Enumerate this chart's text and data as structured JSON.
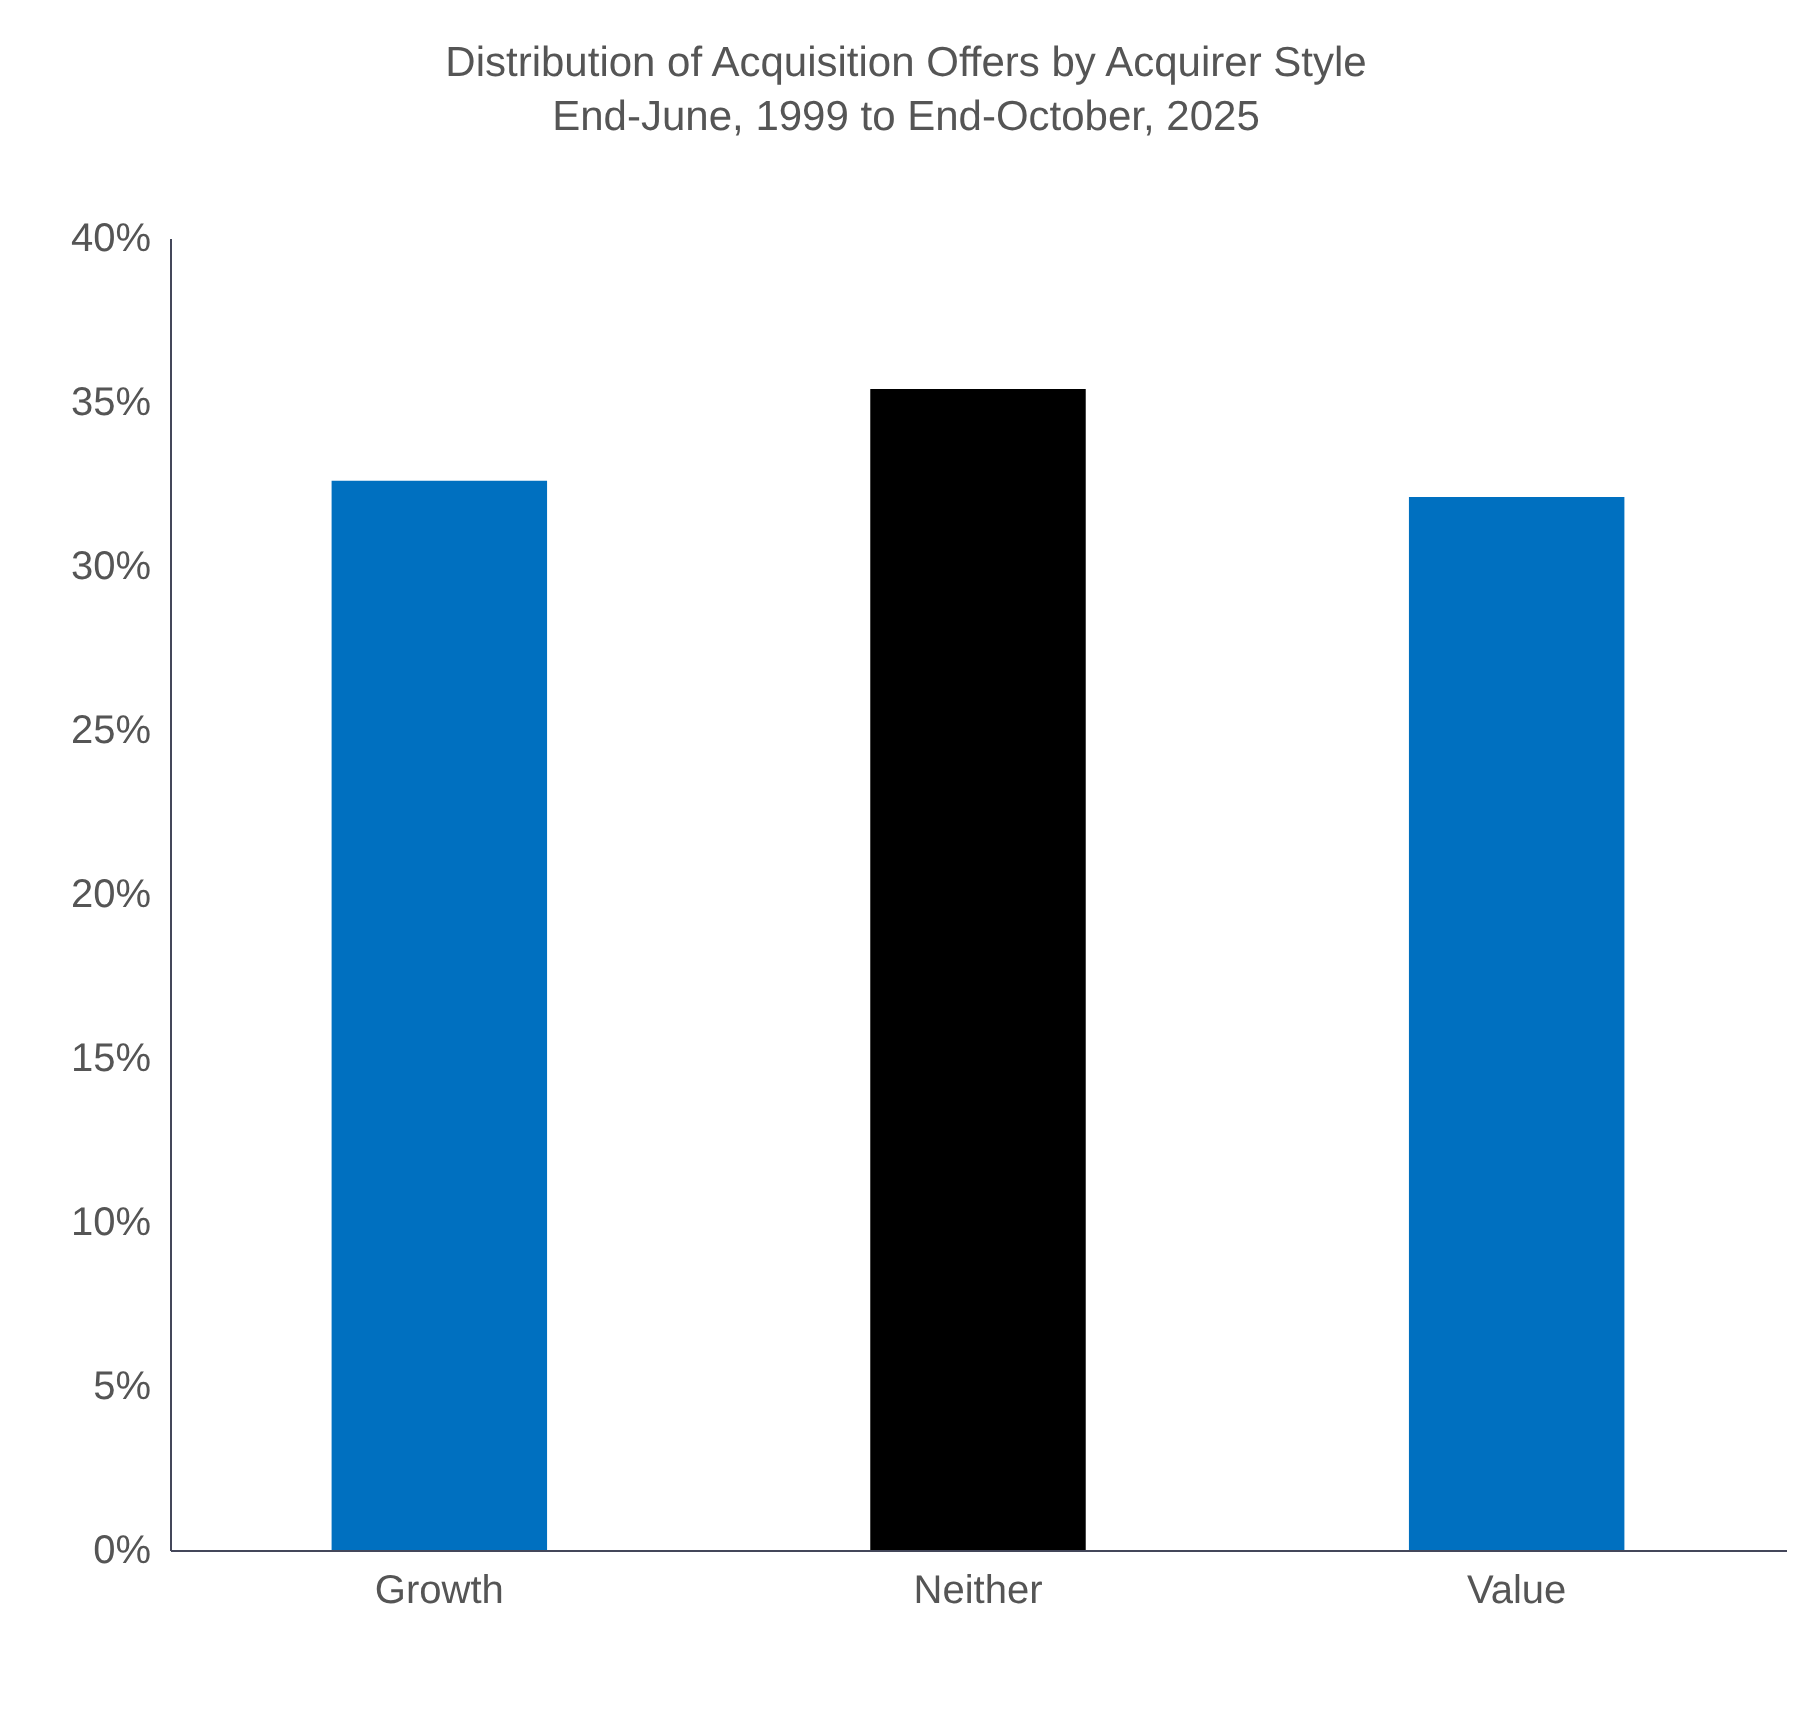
{
  "chart_data": {
    "type": "bar",
    "title": [
      "Distribution of Acquisition Offers by Acquirer Style",
      "End-June, 1999 to End-October, 2025"
    ],
    "categories": [
      "Growth",
      "Neither",
      "Value"
    ],
    "values": [
      32.6,
      35.4,
      32.1
    ],
    "colors": [
      "#0070c0",
      "#000000",
      "#0070c0"
    ],
    "ylim": [
      0,
      40
    ],
    "yticks": [
      {
        "value": 0,
        "label": "0%"
      },
      {
        "value": 5,
        "label": "5%"
      },
      {
        "value": 10,
        "label": "10%"
      },
      {
        "value": 15,
        "label": "15%"
      },
      {
        "value": 20,
        "label": "20%"
      },
      {
        "value": 25,
        "label": "25%"
      },
      {
        "value": 30,
        "label": "30%"
      },
      {
        "value": 35,
        "label": "35%"
      },
      {
        "value": 40,
        "label": "40%"
      }
    ],
    "grid": false,
    "legend": false
  }
}
